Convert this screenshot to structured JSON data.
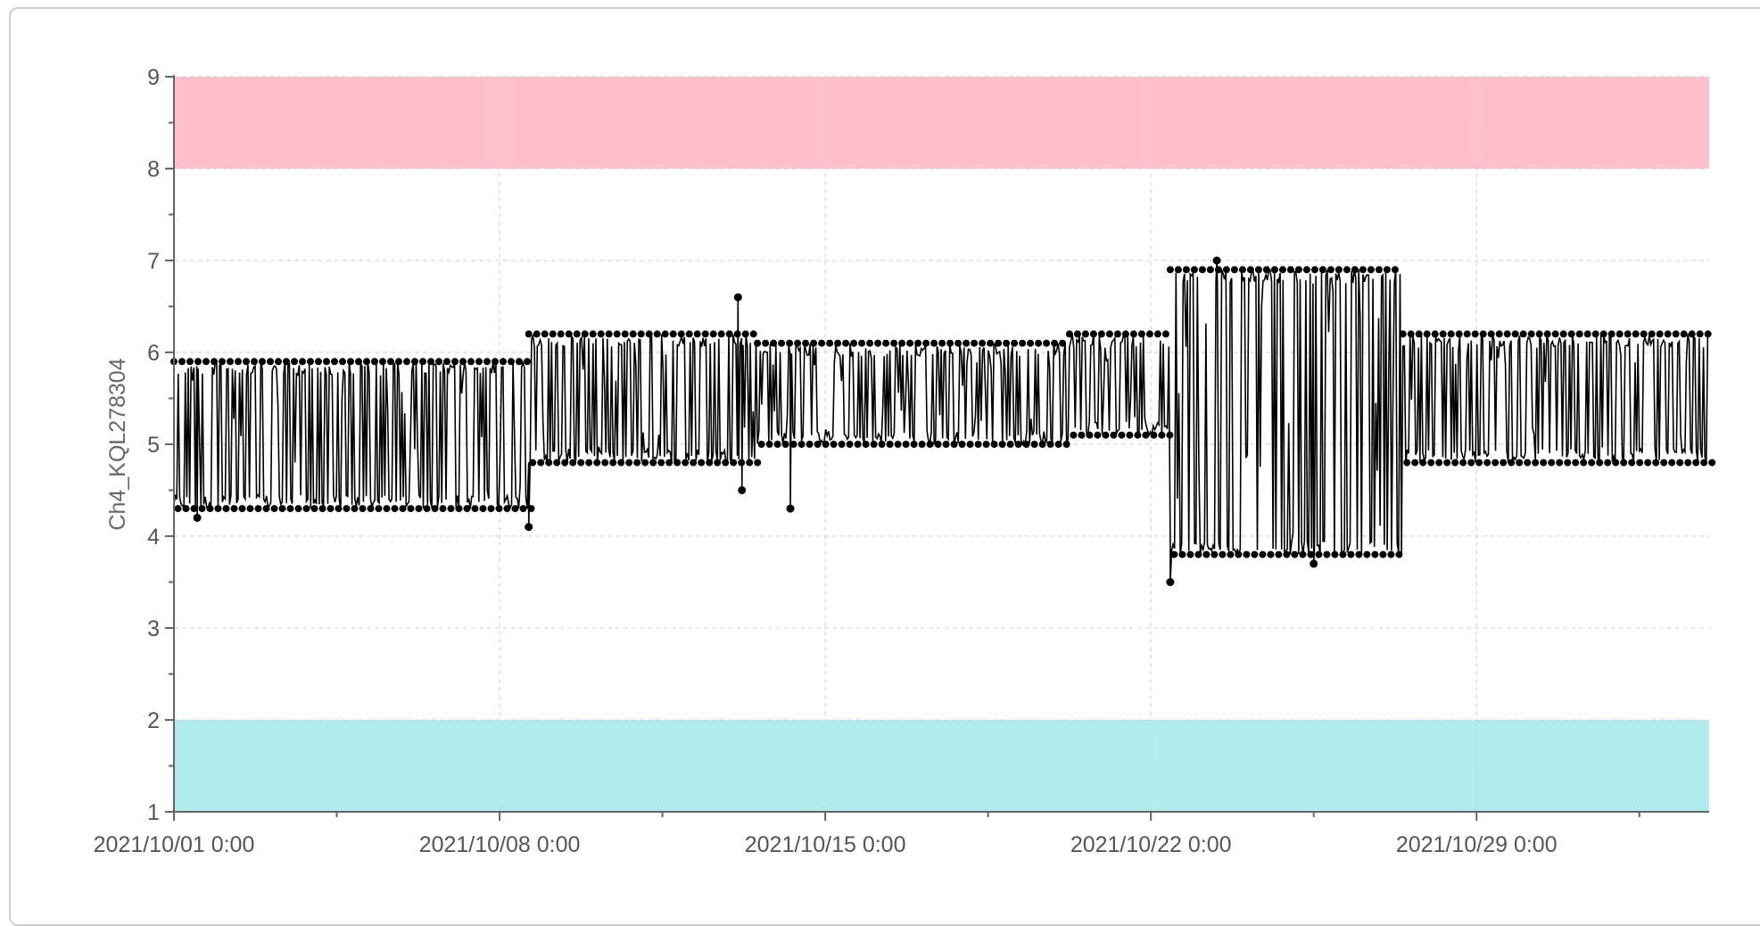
{
  "chart_data": {
    "type": "line",
    "ylabel": "Ch4_KQL278304",
    "ylim": [
      1,
      9
    ],
    "y_ticks": [
      "1",
      "2",
      "3",
      "4",
      "5",
      "6",
      "7",
      "8",
      "9"
    ],
    "x_range": [
      "2021/10/01 0:00",
      "2021/11/03 0:00"
    ],
    "x_tick_labels": [
      "2021/10/01 0:00",
      "2021/10/08 0:00",
      "2021/10/15 0:00",
      "2021/10/22 0:00",
      "2021/10/29 0:00"
    ],
    "grid": true,
    "bands": [
      {
        "from": 8,
        "to": 9,
        "color": "#ffc0cb"
      },
      {
        "from": 1,
        "to": 2,
        "color": "#b0ecec"
      }
    ],
    "series": [
      {
        "color": "#000000",
        "marker": "circle",
        "segments": [
          {
            "start": "2021/10/01 0:00",
            "end": "2021/10/08 15:00",
            "low": 4.3,
            "high": 5.9
          },
          {
            "start": "2021/10/08 15:00",
            "end": "2021/10/13 13:00",
            "low": 4.8,
            "high": 6.2
          },
          {
            "start": "2021/10/13 13:00",
            "end": "2021/10/20 6:00",
            "low": 5.0,
            "high": 6.1
          },
          {
            "start": "2021/10/20 6:00",
            "end": "2021/10/22 10:00",
            "low": 5.1,
            "high": 6.2
          },
          {
            "start": "2021/10/22 10:00",
            "end": "2021/10/27 10:00",
            "low": 3.8,
            "high": 6.9
          },
          {
            "start": "2021/10/27 10:00",
            "end": "2021/11/03 0:00",
            "low": 4.8,
            "high": 6.2
          }
        ],
        "outliers": [
          {
            "x": "2021/10/01 12:00",
            "y": 4.2
          },
          {
            "x": "2021/10/08 15:00",
            "y": 4.1
          },
          {
            "x": "2021/10/13 3:00",
            "y": 6.6
          },
          {
            "x": "2021/10/13 5:00",
            "y": 4.5
          },
          {
            "x": "2021/10/14 6:00",
            "y": 4.3
          },
          {
            "x": "2021/10/22 10:00",
            "y": 3.5
          },
          {
            "x": "2021/10/23 10:00",
            "y": 7.0
          },
          {
            "x": "2021/10/25 12:00",
            "y": 3.7
          }
        ]
      }
    ]
  }
}
